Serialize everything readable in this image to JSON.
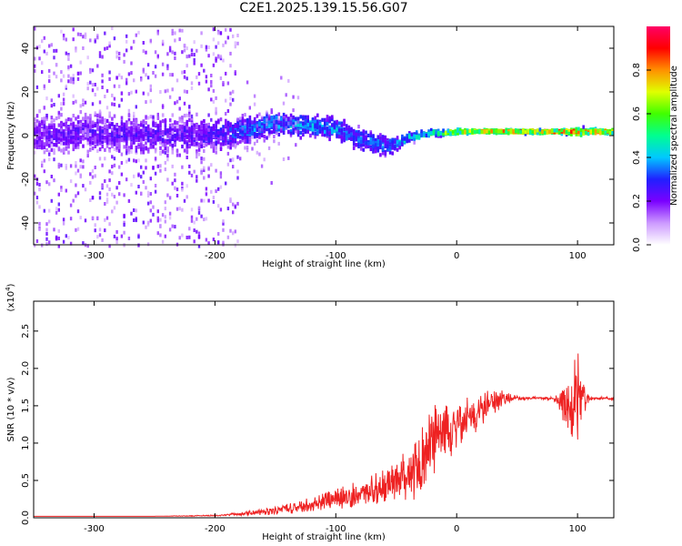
{
  "title": "C2E1.2025.139.15.56.G07",
  "chart_data": [
    {
      "type": "heatmap",
      "title": "C2E1.2025.139.15.56.G07",
      "xlabel": "Height of straight line (km)",
      "ylabel": "Frequency (Hz)",
      "xlim": [
        -350,
        130
      ],
      "ylim": [
        -50,
        50
      ],
      "xticks": [
        -300,
        -200,
        -100,
        0,
        100
      ],
      "yticks": [
        -40,
        -20,
        0,
        20,
        40
      ],
      "grid": false,
      "colorbar": {
        "label": "Normalized spectral amplitude",
        "range": [
          0,
          1
        ],
        "ticks": [
          0.0,
          0.2,
          0.4,
          0.6,
          0.8
        ],
        "colormap": [
          "#ffffff",
          "#cc99ff",
          "#7a00ff",
          "#2020ff",
          "#00c8ff",
          "#00ff90",
          "#40ff00",
          "#e0ff00",
          "#ff9000",
          "#ff0000",
          "#ff0066"
        ]
      },
      "dominant_frequency_track": {
        "x": [
          -350,
          -300,
          -250,
          -200,
          -180,
          -150,
          -120,
          -100,
          -80,
          -60,
          -50,
          -40,
          -30,
          -20,
          -10,
          0,
          20,
          50,
          80,
          100,
          130
        ],
        "y": [
          0,
          1,
          0,
          0,
          2,
          5,
          4,
          3,
          -2,
          -5,
          -4,
          -1,
          0,
          1,
          1,
          1.5,
          1.5,
          1.5,
          1.5,
          1.5,
          1.5
        ],
        "spread_hz": [
          15,
          15,
          14,
          13,
          12,
          9,
          8,
          8,
          9,
          8,
          6,
          4,
          3,
          2.5,
          2,
          2,
          1.5,
          1.5,
          1.5,
          3,
          1.5
        ],
        "peak_amplitude": [
          0.25,
          0.27,
          0.28,
          0.3,
          0.4,
          0.45,
          0.45,
          0.45,
          0.4,
          0.4,
          0.45,
          0.5,
          0.55,
          0.6,
          0.7,
          0.8,
          0.9,
          0.93,
          0.95,
          0.9,
          0.95
        ]
      }
    },
    {
      "type": "line",
      "title": "",
      "xlabel": "Height of straight line (km)",
      "ylabel": "SNR (10 * v/v)",
      "y_scale_label": "(x10",
      "y_scale_exp": "4",
      "y_scale_suffix": ")",
      "xlim": [
        -350,
        130
      ],
      "ylim": [
        0,
        2.9
      ],
      "xticks": [
        -300,
        -200,
        -100,
        0,
        100
      ],
      "yticks": [
        0.0,
        0.5,
        1.0,
        1.5,
        2.0,
        2.5
      ],
      "color": "#ee2222",
      "series": [
        {
          "x": [
            -350,
            -250,
            -200,
            -180,
            -160,
            -140,
            -120,
            -100,
            -80,
            -60,
            -50,
            -40,
            -30,
            -25,
            -20,
            -15,
            -10,
            -5,
            0,
            5,
            10,
            15,
            20,
            25,
            30,
            35,
            40,
            45,
            50,
            60,
            70,
            80,
            85,
            90,
            95,
            100,
            103,
            106,
            110,
            120,
            130
          ],
          "y": [
            0.02,
            0.02,
            0.03,
            0.05,
            0.08,
            0.12,
            0.18,
            0.25,
            0.33,
            0.42,
            0.5,
            0.58,
            0.7,
            0.9,
            1.05,
            1.15,
            1.2,
            1.15,
            1.25,
            1.3,
            1.35,
            1.4,
            1.45,
            1.5,
            1.55,
            1.58,
            1.6,
            1.6,
            1.6,
            1.6,
            1.6,
            1.6,
            1.58,
            1.55,
            1.5,
            1.5,
            1.52,
            1.58,
            1.6,
            1.6,
            1.6
          ],
          "noise": [
            0,
            0,
            0.01,
            0.02,
            0.05,
            0.07,
            0.1,
            0.14,
            0.18,
            0.25,
            0.3,
            0.35,
            0.45,
            0.5,
            0.5,
            0.45,
            0.4,
            0.35,
            0.3,
            0.3,
            0.3,
            0.28,
            0.25,
            0.22,
            0.2,
            0.15,
            0.1,
            0.06,
            0.03,
            0.02,
            0.02,
            0.02,
            0.15,
            0.35,
            0.55,
            0.8,
            0.6,
            0.3,
            0.03,
            0.02,
            0.02
          ]
        }
      ]
    }
  ]
}
